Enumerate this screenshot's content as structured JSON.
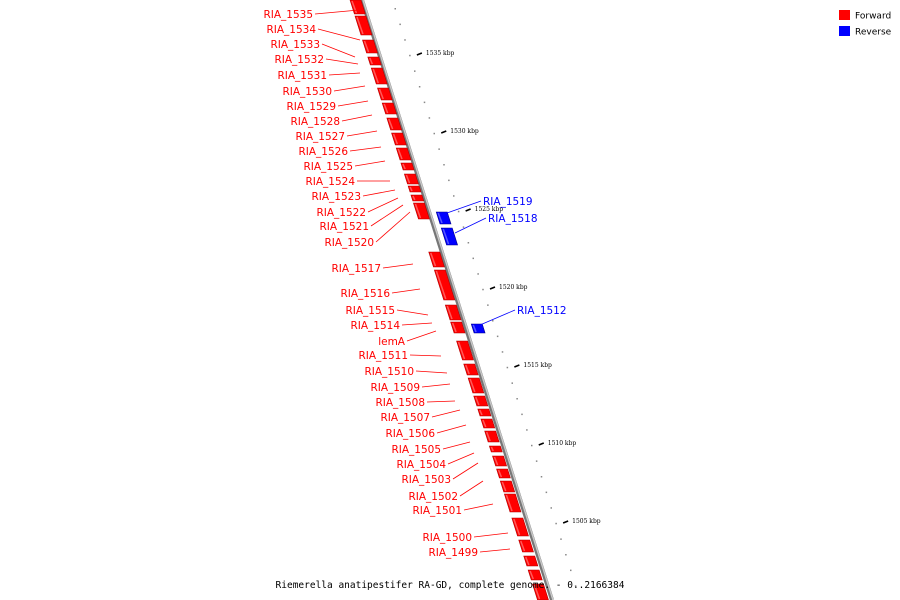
{
  "legend": [
    {
      "label": "Forward",
      "color": "#ff0000"
    },
    {
      "label": "Reverse",
      "color": "#0000ff"
    }
  ],
  "colors": {
    "forward": "#ff0000",
    "reverse": "#0000ff",
    "backbone": "#9a9a9a",
    "tick": "#000000"
  },
  "caption": "Riemerella anatipestifer RA-GD, complete genome. - 0..2166384",
  "ticks": [
    "1535 kbp",
    "1530 kbp",
    "1525 kbp",
    "1520 kbp",
    "1515 kbp",
    "1510 kbp",
    "1505 kbp"
  ],
  "genes": [
    {
      "label": "RIA_1535",
      "strand": "forward"
    },
    {
      "label": "RIA_1534",
      "strand": "forward"
    },
    {
      "label": "RIA_1533",
      "strand": "forward"
    },
    {
      "label": "RIA_1532",
      "strand": "forward"
    },
    {
      "label": "RIA_1531",
      "strand": "forward"
    },
    {
      "label": "RIA_1530",
      "strand": "forward"
    },
    {
      "label": "RIA_1529",
      "strand": "forward"
    },
    {
      "label": "RIA_1528",
      "strand": "forward"
    },
    {
      "label": "RIA_1527",
      "strand": "forward"
    },
    {
      "label": "RIA_1526",
      "strand": "forward"
    },
    {
      "label": "RIA_1525",
      "strand": "forward"
    },
    {
      "label": "RIA_1524",
      "strand": "forward"
    },
    {
      "label": "RIA_1523",
      "strand": "forward"
    },
    {
      "label": "RIA_1522",
      "strand": "forward"
    },
    {
      "label": "RIA_1521",
      "strand": "forward"
    },
    {
      "label": "RIA_1520",
      "strand": "forward"
    },
    {
      "label": "RIA_1519",
      "strand": "reverse"
    },
    {
      "label": "RIA_1518",
      "strand": "reverse"
    },
    {
      "label": "RIA_1517",
      "strand": "forward"
    },
    {
      "label": "RIA_1516",
      "strand": "forward"
    },
    {
      "label": "RIA_1515",
      "strand": "forward"
    },
    {
      "label": "RIA_1514",
      "strand": "forward"
    },
    {
      "label": "RIA_1512",
      "strand": "reverse"
    },
    {
      "label": "lemA",
      "strand": "forward"
    },
    {
      "label": "RIA_1511",
      "strand": "forward"
    },
    {
      "label": "RIA_1510",
      "strand": "forward"
    },
    {
      "label": "RIA_1509",
      "strand": "forward"
    },
    {
      "label": "RIA_1508",
      "strand": "forward"
    },
    {
      "label": "RIA_1507",
      "strand": "forward"
    },
    {
      "label": "RIA_1506",
      "strand": "forward"
    },
    {
      "label": "RIA_1505",
      "strand": "forward"
    },
    {
      "label": "RIA_1504",
      "strand": "forward"
    },
    {
      "label": "RIA_1503",
      "strand": "forward"
    },
    {
      "label": "RIA_1502",
      "strand": "forward"
    },
    {
      "label": "RIA_1501",
      "strand": "forward"
    },
    {
      "label": "RIA_1500",
      "strand": "forward"
    },
    {
      "label": "RIA_1499",
      "strand": "forward"
    }
  ]
}
